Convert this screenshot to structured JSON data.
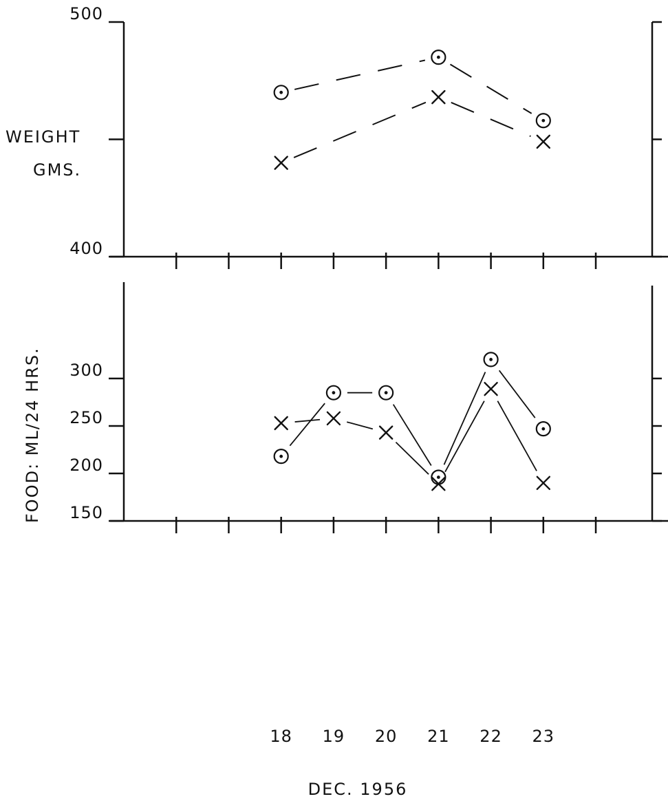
{
  "chart_data": [
    {
      "type": "line",
      "ylabel_lines": [
        "WEIGHT",
        "GMS."
      ],
      "ylim": [
        400,
        500
      ],
      "y_tick_labels": [
        {
          "value": 500,
          "label": "500"
        },
        {
          "value": 450,
          "label": ""
        },
        {
          "value": 400,
          "label": "400"
        }
      ],
      "x_ticks": [
        16,
        17,
        18,
        19,
        20,
        21,
        22,
        23,
        24
      ],
      "xlim": [
        15.0,
        25.6
      ],
      "line_style": "dashed",
      "series": [
        {
          "marker": "circle",
          "x": [
            18,
            21,
            23
          ],
          "values": [
            470,
            485,
            458
          ]
        },
        {
          "marker": "x",
          "x": [
            18,
            21,
            23
          ],
          "values": [
            440,
            468,
            449
          ]
        }
      ]
    },
    {
      "type": "line",
      "ylabel": "FOOD: ML/24 HRS.",
      "xlabel": "DEC. 1956",
      "ylim": [
        150,
        340
      ],
      "y_tick_labels": [
        {
          "value": 300,
          "label": "300"
        },
        {
          "value": 250,
          "label": "250"
        },
        {
          "value": 200,
          "label": "200"
        },
        {
          "value": 150,
          "label": "150"
        }
      ],
      "x_ticks": [
        16,
        17,
        18,
        19,
        20,
        21,
        22,
        23,
        24
      ],
      "x_tick_labels": [
        {
          "value": 18,
          "label": "18"
        },
        {
          "value": 19,
          "label": "19"
        },
        {
          "value": 20,
          "label": "20"
        },
        {
          "value": 21,
          "label": "21"
        },
        {
          "value": 22,
          "label": "22"
        },
        {
          "value": 23,
          "label": "23"
        }
      ],
      "xlim": [
        15.0,
        25.6
      ],
      "line_style": "solid",
      "series": [
        {
          "marker": "circle",
          "x": [
            18,
            19,
            20,
            21,
            22,
            23
          ],
          "values": [
            218,
            285,
            285,
            196,
            320,
            247
          ]
        },
        {
          "marker": "x",
          "x": [
            18,
            19,
            20,
            21,
            22,
            23
          ],
          "values": [
            253,
            258,
            243,
            189,
            289,
            190
          ]
        }
      ]
    }
  ]
}
